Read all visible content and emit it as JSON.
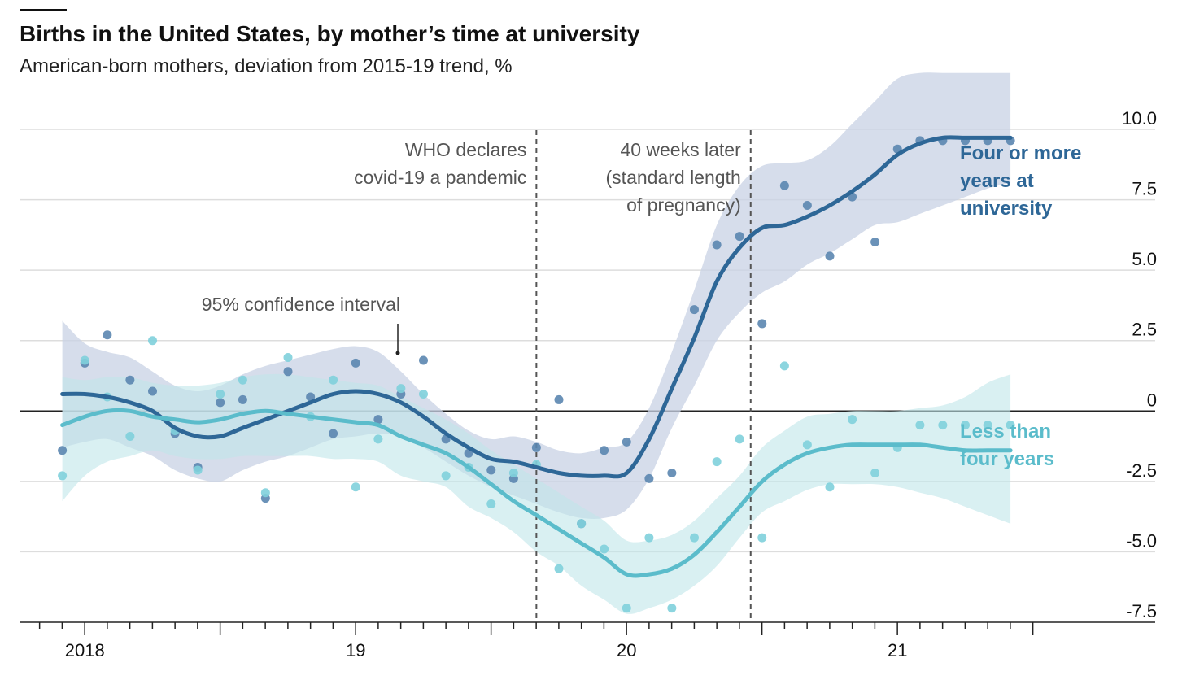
{
  "header": {
    "title": "Births in the United States, by mother’s time at university",
    "subtitle": "American-born mothers, deviation from 2015-19 trend, %"
  },
  "chart_data": {
    "type": "line",
    "title": "Births in the United States, by mother’s time at university",
    "subtitle": "American-born mothers, deviation from 2015-19 trend, %",
    "ylim": [
      -7.5,
      10.0
    ],
    "xlim": [
      2017.75,
      2021.75
    ],
    "y_ticks": [
      10.0,
      7.5,
      5.0,
      2.5,
      0,
      -2.5,
      -5.0,
      -7.5
    ],
    "y_tick_labels": [
      "10.0",
      "7.5",
      "5.0",
      "2.5",
      "0",
      "-2.5",
      "-5.0",
      "-7.5"
    ],
    "x_tick_labels": [
      {
        "label": "2018",
        "x": 2018.0
      },
      {
        "label": "19",
        "x": 2019.0
      },
      {
        "label": "20",
        "x": 2020.0
      },
      {
        "label": "21",
        "x": 2021.0
      }
    ],
    "grid": true,
    "colors": {
      "university": "#2e6797",
      "less": "#5bbccb",
      "grid": "#dddddd",
      "dash": "#555555"
    },
    "annotations": [
      {
        "name": "who-pandemic",
        "x": 2019.667,
        "lines": [
          "WHO declares",
          "covid-19 a pandemic"
        ]
      },
      {
        "name": "forty-weeks",
        "x": 2020.458,
        "lines": [
          "40 weeks later",
          "(standard length",
          "of pregnancy)"
        ]
      },
      {
        "name": "confidence-interval",
        "lines": [
          "95% confidence interval"
        ]
      }
    ],
    "series": [
      {
        "name": "Four or more years at university",
        "label_lines": [
          "Four or more",
          "years at",
          "university"
        ],
        "color": "#2e6797",
        "x": [
          2017.917,
          2018.0,
          2018.083,
          2018.167,
          2018.25,
          2018.333,
          2018.417,
          2018.5,
          2018.583,
          2018.667,
          2018.75,
          2018.833,
          2018.917,
          2019.0,
          2019.083,
          2019.167,
          2019.25,
          2019.333,
          2019.417,
          2019.5,
          2019.583,
          2019.667,
          2019.75,
          2019.833,
          2019.917,
          2020.0,
          2020.083,
          2020.167,
          2020.25,
          2020.333,
          2020.417,
          2020.5,
          2020.583,
          2020.667,
          2020.75,
          2020.833,
          2020.917,
          2021.0,
          2021.083,
          2021.167,
          2021.25,
          2021.333,
          2021.417
        ],
        "trend": [
          0.6,
          0.6,
          0.5,
          0.3,
          0.0,
          -0.6,
          -0.9,
          -0.9,
          -0.6,
          -0.3,
          0.0,
          0.3,
          0.6,
          0.7,
          0.6,
          0.3,
          -0.2,
          -0.8,
          -1.3,
          -1.7,
          -1.8,
          -2.0,
          -2.2,
          -2.3,
          -2.3,
          -2.2,
          -1.0,
          0.8,
          2.6,
          4.6,
          5.8,
          6.5,
          6.6,
          6.9,
          7.3,
          7.8,
          8.4,
          9.1,
          9.5,
          9.7,
          9.7,
          9.7,
          9.7
        ],
        "ci_upper": [
          3.2,
          2.4,
          2.1,
          1.9,
          1.4,
          0.9,
          0.7,
          0.9,
          1.3,
          1.6,
          1.8,
          2.0,
          2.2,
          2.3,
          2.1,
          1.4,
          0.6,
          -0.1,
          -0.7,
          -1.0,
          -0.9,
          -1.1,
          -1.4,
          -1.5,
          -1.3,
          -1.1,
          0.1,
          2.1,
          4.3,
          6.6,
          8.0,
          8.7,
          8.8,
          8.9,
          9.4,
          10.2,
          11.0,
          11.8,
          12.0,
          12.0,
          12.0,
          12.0,
          12.0
        ],
        "ci_lower": [
          -1.3,
          -1.1,
          -1.0,
          -1.3,
          -1.6,
          -2.1,
          -2.4,
          -2.5,
          -2.1,
          -1.8,
          -1.6,
          -1.3,
          -1.0,
          -0.9,
          -0.8,
          -0.9,
          -1.3,
          -1.8,
          -2.3,
          -2.7,
          -3.0,
          -3.3,
          -3.6,
          -3.8,
          -3.8,
          -3.5,
          -2.4,
          -0.6,
          0.9,
          2.5,
          3.5,
          4.2,
          4.6,
          5.2,
          5.6,
          6.1,
          6.6,
          6.7,
          7.0,
          7.3,
          7.6,
          7.9,
          8.1
        ],
        "points_x": [
          2017.917,
          2018.0,
          2018.083,
          2018.167,
          2018.25,
          2018.333,
          2018.417,
          2018.5,
          2018.583,
          2018.667,
          2018.75,
          2018.833,
          2018.917,
          2019.0,
          2019.083,
          2019.167,
          2019.25,
          2019.333,
          2019.417,
          2019.5,
          2019.583,
          2019.667,
          2019.75,
          2019.833,
          2019.917,
          2020.0,
          2020.083,
          2020.167,
          2020.25,
          2020.333,
          2020.417,
          2020.5,
          2020.583,
          2020.667,
          2020.75,
          2020.833,
          2020.917,
          2021.0,
          2021.083,
          2021.167,
          2021.25,
          2021.333,
          2021.417
        ],
        "points_y": [
          -1.4,
          1.7,
          2.7,
          1.1,
          0.7,
          -0.8,
          -2.0,
          0.3,
          0.4,
          -3.1,
          1.4,
          0.5,
          -0.8,
          1.7,
          -0.3,
          0.6,
          1.8,
          -1.0,
          -1.5,
          -2.1,
          -2.4,
          -1.3,
          0.4,
          -4.0,
          -1.4,
          -1.1,
          -2.4,
          -2.2,
          3.6,
          5.9,
          6.2,
          3.1,
          8.0,
          7.3,
          5.5,
          7.6,
          6.0,
          9.3,
          9.6,
          9.6,
          9.6,
          9.6,
          9.6
        ]
      },
      {
        "name": "Less than four years",
        "label_lines": [
          "Less than",
          "four years"
        ],
        "color": "#5bbccb",
        "x": [
          2017.917,
          2018.0,
          2018.083,
          2018.167,
          2018.25,
          2018.333,
          2018.417,
          2018.5,
          2018.583,
          2018.667,
          2018.75,
          2018.833,
          2018.917,
          2019.0,
          2019.083,
          2019.167,
          2019.25,
          2019.333,
          2019.417,
          2019.5,
          2019.583,
          2019.667,
          2019.75,
          2019.833,
          2019.917,
          2020.0,
          2020.083,
          2020.167,
          2020.25,
          2020.333,
          2020.417,
          2020.5,
          2020.583,
          2020.667,
          2020.75,
          2020.833,
          2020.917,
          2021.0,
          2021.083,
          2021.167,
          2021.25,
          2021.333,
          2021.417
        ],
        "trend": [
          -0.5,
          -0.2,
          0.0,
          0.0,
          -0.2,
          -0.3,
          -0.4,
          -0.3,
          -0.1,
          0.0,
          -0.1,
          -0.2,
          -0.3,
          -0.4,
          -0.5,
          -0.9,
          -1.2,
          -1.5,
          -2.0,
          -2.6,
          -3.2,
          -3.7,
          -4.2,
          -4.7,
          -5.2,
          -5.8,
          -5.8,
          -5.6,
          -5.1,
          -4.3,
          -3.4,
          -2.5,
          -1.9,
          -1.5,
          -1.3,
          -1.2,
          -1.2,
          -1.2,
          -1.2,
          -1.3,
          -1.4,
          -1.4,
          -1.4
        ],
        "ci_upper": [
          1.2,
          1.1,
          1.2,
          1.2,
          1.0,
          0.9,
          0.9,
          1.0,
          1.2,
          1.3,
          1.3,
          1.2,
          1.1,
          1.0,
          0.9,
          0.5,
          0.1,
          -0.3,
          -0.8,
          -1.4,
          -1.9,
          -2.4,
          -2.9,
          -3.4,
          -3.9,
          -4.6,
          -4.6,
          -4.4,
          -3.9,
          -3.1,
          -2.3,
          -1.3,
          -0.7,
          -0.2,
          -0.1,
          0.0,
          0.0,
          0.0,
          0.1,
          0.2,
          0.5,
          1.0,
          1.3
        ],
        "ci_lower": [
          -3.2,
          -2.3,
          -1.8,
          -1.6,
          -1.4,
          -1.6,
          -1.7,
          -1.7,
          -1.6,
          -1.6,
          -1.6,
          -1.6,
          -1.7,
          -1.7,
          -1.8,
          -2.3,
          -2.5,
          -2.7,
          -3.4,
          -3.8,
          -4.3,
          -5.0,
          -5.5,
          -6.2,
          -6.7,
          -7.2,
          -7.0,
          -6.7,
          -6.2,
          -5.5,
          -4.5,
          -3.6,
          -3.2,
          -2.8,
          -2.6,
          -2.6,
          -2.6,
          -2.7,
          -2.9,
          -3.1,
          -3.4,
          -3.7,
          -4.0
        ],
        "points_x": [
          2017.917,
          2018.0,
          2018.083,
          2018.167,
          2018.25,
          2018.333,
          2018.417,
          2018.5,
          2018.583,
          2018.667,
          2018.75,
          2018.833,
          2018.917,
          2019.0,
          2019.083,
          2019.167,
          2019.25,
          2019.333,
          2019.417,
          2019.5,
          2019.583,
          2019.667,
          2019.75,
          2019.833,
          2019.917,
          2020.0,
          2020.083,
          2020.167,
          2020.25,
          2020.333,
          2020.417,
          2020.5,
          2020.583,
          2020.667,
          2020.75,
          2020.833,
          2020.917,
          2021.0,
          2021.083,
          2021.167,
          2021.25,
          2021.333,
          2021.417
        ],
        "points_y": [
          -2.3,
          1.8,
          0.5,
          -0.9,
          2.5,
          -0.7,
          -2.1,
          0.6,
          1.1,
          -2.9,
          1.9,
          -0.2,
          1.1,
          -2.7,
          -1.0,
          0.8,
          0.6,
          -2.3,
          -2.0,
          -3.3,
          -2.2,
          -1.9,
          -5.6,
          -4.0,
          -4.9,
          -7.0,
          -4.5,
          -7.0,
          -4.5,
          -1.8,
          -1.0,
          -4.5,
          1.6,
          -1.2,
          -2.7,
          -0.3,
          -2.2,
          -1.3,
          -0.5,
          -0.5,
          -0.5,
          -0.5,
          -0.5
        ]
      }
    ]
  }
}
